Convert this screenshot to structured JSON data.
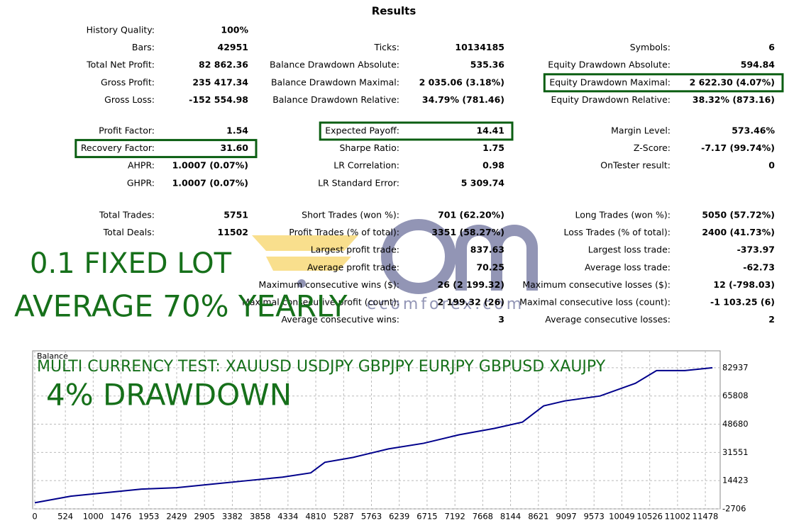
{
  "title": "Results",
  "groups": [
    [
      [
        {
          "label": "History Quality:",
          "value": "100%"
        },
        null,
        null
      ],
      [
        {
          "label": "Bars:",
          "value": "42951"
        },
        {
          "label": "Ticks:",
          "value": "10134185"
        },
        {
          "label": "Symbols:",
          "value": "6"
        }
      ],
      [
        {
          "label": "Total Net Profit:",
          "value": "82 862.36"
        },
        {
          "label": "Balance Drawdown Absolute:",
          "value": "535.36"
        },
        {
          "label": "Equity Drawdown Absolute:",
          "value": "594.84"
        }
      ],
      [
        {
          "label": "Gross Profit:",
          "value": "235 417.34"
        },
        {
          "label": "Balance Drawdown Maximal:",
          "value": "2 035.06 (3.18%)"
        },
        {
          "label": "Equity Drawdown Maximal:",
          "value": "2 622.30 (4.07%)",
          "highlight": true
        }
      ],
      [
        {
          "label": "Gross Loss:",
          "value": "-152 554.98"
        },
        {
          "label": "Balance Drawdown Relative:",
          "value": "34.79% (781.46)"
        },
        {
          "label": "Equity Drawdown Relative:",
          "value": "38.32% (873.16)"
        }
      ]
    ],
    [
      [
        {
          "label": "Profit Factor:",
          "value": "1.54"
        },
        {
          "label": "Expected Payoff:",
          "value": "14.41",
          "highlight": true
        },
        {
          "label": "Margin Level:",
          "value": "573.46%"
        }
      ],
      [
        {
          "label": "Recovery Factor:",
          "value": "31.60",
          "highlight": true
        },
        {
          "label": "Sharpe Ratio:",
          "value": "1.75"
        },
        {
          "label": "Z-Score:",
          "value": "-7.17 (99.74%)"
        }
      ],
      [
        {
          "label": "AHPR:",
          "value": "1.0007 (0.07%)"
        },
        {
          "label": "LR Correlation:",
          "value": "0.98"
        },
        {
          "label": "OnTester result:",
          "value": "0"
        }
      ],
      [
        {
          "label": "GHPR:",
          "value": "1.0007 (0.07%)"
        },
        {
          "label": "LR Standard Error:",
          "value": "5 309.74"
        },
        null
      ]
    ],
    [
      [
        {
          "label": "Total Trades:",
          "value": "5751"
        },
        {
          "label": "Short Trades (won %):",
          "value": "701 (62.20%)"
        },
        {
          "label": "Long Trades (won %):",
          "value": "5050 (57.72%)"
        }
      ],
      [
        {
          "label": "Total Deals:",
          "value": "11502"
        },
        {
          "label": "Profit Trades (% of total):",
          "value": "3351 (58.27%)"
        },
        {
          "label": "Loss Trades (% of total):",
          "value": "2400 (41.73%)"
        }
      ],
      [
        null,
        {
          "label": "Largest profit trade:",
          "value": "837.63"
        },
        {
          "label": "Largest loss trade:",
          "value": "-373.97"
        }
      ],
      [
        null,
        {
          "label": "Average profit trade:",
          "value": "70.25"
        },
        {
          "label": "Average loss trade:",
          "value": "-62.73"
        }
      ],
      [
        null,
        {
          "label": "Maximum consecutive wins ($):",
          "value": "26 (2 199.32)"
        },
        {
          "label": "Maximum consecutive losses ($):",
          "value": "12 (-798.03)"
        }
      ],
      [
        null,
        {
          "label": "Maximal consecutive profit (count):",
          "value": "2 199.32 (26)"
        },
        {
          "label": "Maximal consecutive loss (count):",
          "value": "-1 103.25 (6)"
        }
      ],
      [
        null,
        {
          "label": "Average consecutive wins:",
          "value": "3"
        },
        {
          "label": "Average consecutive losses:",
          "value": "2"
        }
      ]
    ]
  ],
  "overlay": {
    "lot": "0.1 FIXED LOT",
    "yearly": "AVERAGE 70% YEARLY",
    "test": "MULTI CURRENCY TEST: XAUUSD USDJPY GBPJPY EURJPY GBPUSD XAUJPY",
    "drawdown": "4% DRAWDOWN"
  },
  "watermark": "ecomforex.com",
  "chart_data": {
    "type": "line",
    "y_label": "Balance",
    "x": [
      0,
      616,
      1220,
      1824,
      2428,
      3032,
      3636,
      4240,
      4724,
      4966,
      5450,
      6054,
      6657,
      7261,
      7865,
      8348,
      8711,
      9073,
      9677,
      10281,
      10643,
      11127,
      11600
    ],
    "series": [
      {
        "color": "#00008b",
        "values": [
          1000,
          5000,
          7150,
          9290,
          10140,
          12280,
          14420,
          16560,
          19130,
          25550,
          28550,
          33690,
          37110,
          42250,
          46110,
          49960,
          59810,
          62810,
          65810,
          73510,
          81220,
          81220,
          82937
        ]
      }
    ],
    "xlim": [
      0,
      11732
    ],
    "ylim": [
      -2706,
      93214
    ],
    "xticks": [
      0,
      524,
      1000,
      1476,
      1953,
      2429,
      2905,
      3382,
      3858,
      4334,
      4810,
      5287,
      5763,
      6239,
      6715,
      7192,
      7668,
      8144,
      8621,
      9097,
      9573,
      10049,
      10526,
      11002,
      11478
    ],
    "yticks": [
      -2706,
      14423,
      31551,
      48680,
      65808,
      82937
    ],
    "grid": true
  }
}
